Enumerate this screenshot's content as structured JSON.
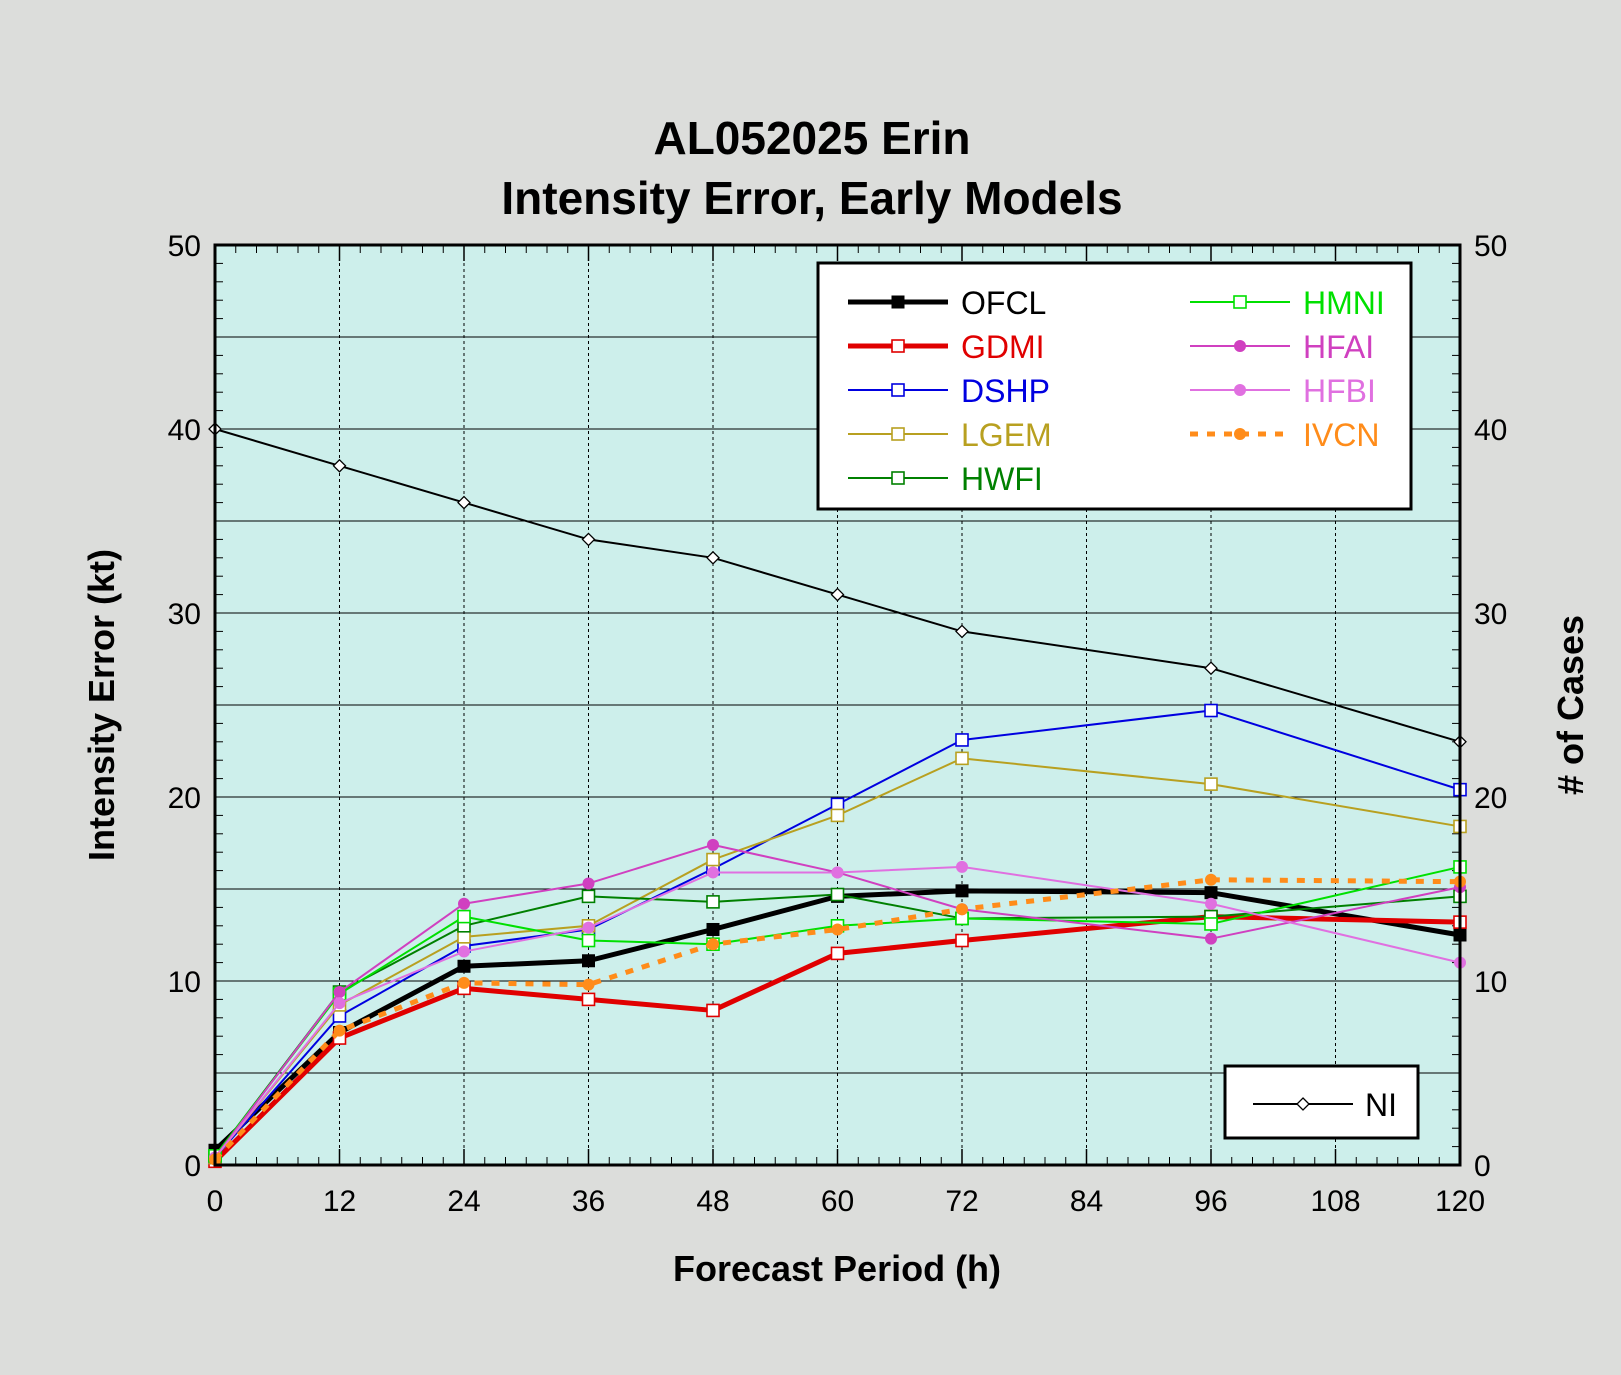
{
  "chart_data": {
    "type": "line",
    "title": "AL052025 Erin",
    "subtitle": "Intensity Error, Early Models",
    "xlabel": "Forecast Period (h)",
    "ylabel": "Intensity Error (kt)",
    "y2label": "# of Cases",
    "xlim": [
      0,
      120
    ],
    "ylim": [
      0,
      50
    ],
    "y2lim": [
      0,
      50
    ],
    "x_ticks": [
      "0",
      "12",
      "24",
      "36",
      "48",
      "60",
      "72",
      "84",
      "96",
      "108",
      "120"
    ],
    "y_ticks": [
      "0",
      "10",
      "20",
      "30",
      "40",
      "50"
    ],
    "y2_ticks": [
      "0",
      "10",
      "20",
      "30",
      "40",
      "50"
    ],
    "x": [
      0,
      12,
      24,
      36,
      48,
      60,
      72,
      96,
      120
    ],
    "grid": true,
    "legend_position": "top-right",
    "plot_background": "#cdefeb",
    "series": [
      {
        "name": "OFCL",
        "color": "#000000",
        "marker": "filled-square",
        "width": 5,
        "values": [
          0.8,
          7.2,
          10.8,
          11.1,
          12.8,
          14.6,
          14.9,
          14.8,
          12.5
        ]
      },
      {
        "name": "GDMI",
        "color": "#e00000",
        "marker": "open-square",
        "width": 5,
        "values": [
          0.2,
          6.9,
          9.6,
          9.0,
          8.4,
          11.5,
          12.2,
          13.5,
          13.2
        ]
      },
      {
        "name": "DSHP",
        "color": "#0000e0",
        "marker": "open-square",
        "width": 2,
        "values": [
          0.4,
          8.1,
          11.9,
          12.8,
          16.1,
          19.6,
          23.1,
          24.7,
          20.4
        ]
      },
      {
        "name": "LGEM",
        "color": "#b8a020",
        "marker": "open-square",
        "width": 2,
        "values": [
          0.4,
          8.7,
          12.4,
          13.0,
          16.6,
          19.0,
          22.1,
          20.7,
          18.4
        ]
      },
      {
        "name": "HWFI",
        "color": "#008000",
        "marker": "open-square",
        "width": 2,
        "values": [
          0.5,
          9.4,
          13.0,
          14.6,
          14.3,
          14.7,
          13.4,
          13.5,
          14.6
        ]
      },
      {
        "name": "HMNI",
        "color": "#00e000",
        "marker": "open-square",
        "width": 2,
        "values": [
          0.5,
          9.3,
          13.5,
          12.2,
          12.0,
          13.0,
          13.4,
          13.1,
          16.2
        ]
      },
      {
        "name": "HFAI",
        "color": "#d040c0",
        "marker": "filled-circle",
        "width": 2,
        "values": [
          0.4,
          9.4,
          14.2,
          15.3,
          17.4,
          15.9,
          13.9,
          12.3,
          15.1
        ]
      },
      {
        "name": "HFBI",
        "color": "#e070e0",
        "marker": "filled-circle",
        "width": 2,
        "values": [
          0.4,
          8.8,
          11.6,
          12.9,
          15.9,
          15.9,
          16.2,
          14.2,
          11.0
        ]
      },
      {
        "name": "IVCN",
        "color": "#ff8c1a",
        "marker": "filled-circle",
        "width": 5,
        "dashed": true,
        "values": [
          0.3,
          7.3,
          9.9,
          9.8,
          12.0,
          12.8,
          13.9,
          15.5,
          15.4
        ]
      }
    ],
    "cases_series": {
      "name": "NI",
      "color": "#000000",
      "marker": "open-diamond",
      "values": [
        40,
        38,
        36,
        34,
        33,
        31,
        29,
        27,
        23
      ]
    }
  }
}
